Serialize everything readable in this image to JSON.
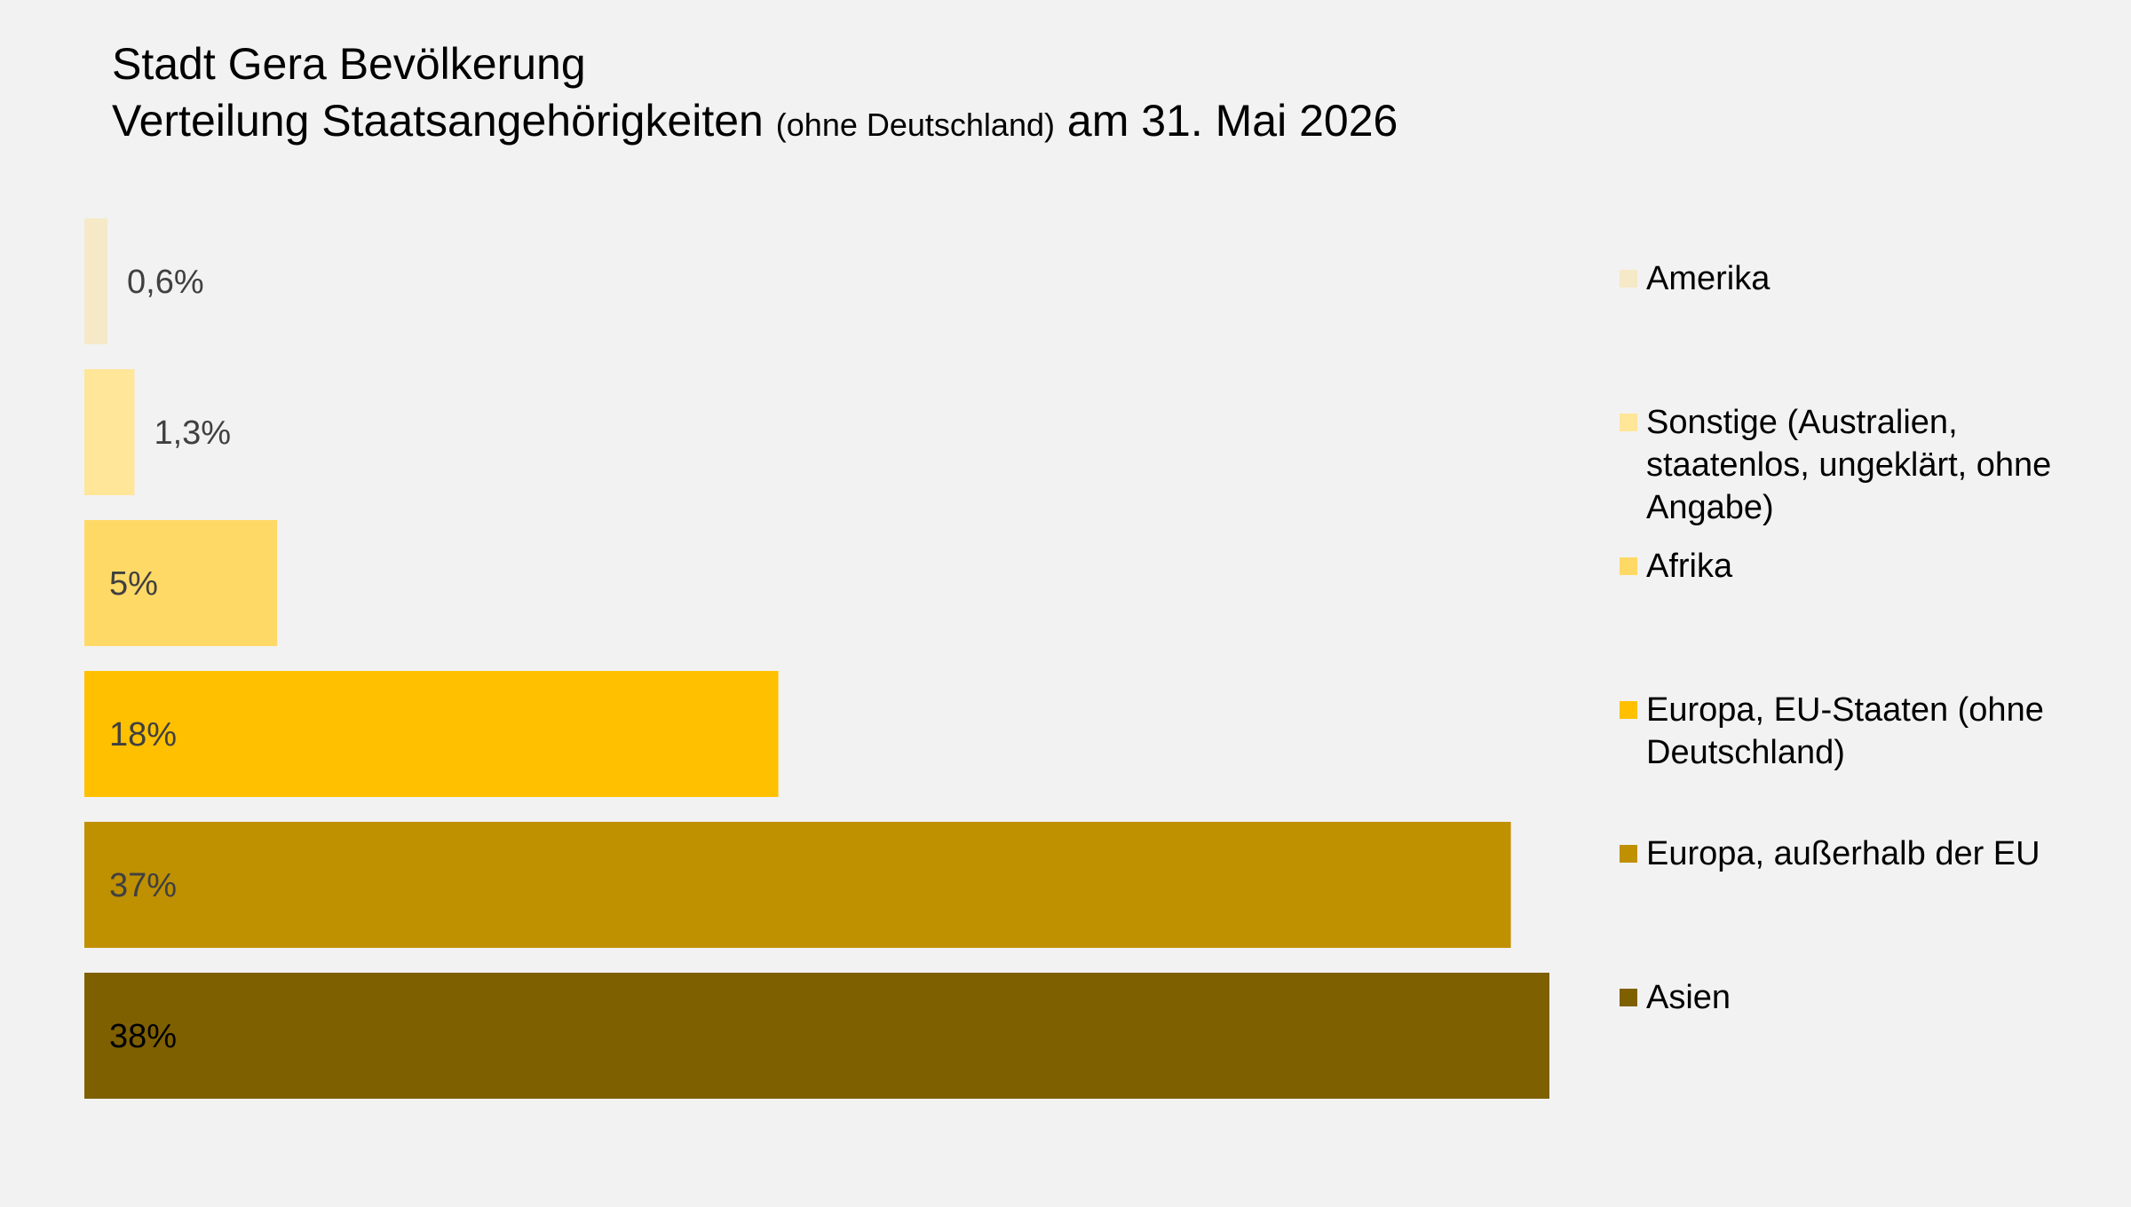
{
  "title": {
    "line1": "Stadt Gera Bevölkerung",
    "line2_main": "Verteilung Staatsangehörigkeiten",
    "line2_small": "(ohne Deutschland)",
    "line2_end": "am 31. Mai 2026"
  },
  "chart_data": {
    "type": "bar",
    "orientation": "horizontal",
    "title": "Stadt Gera Bevölkerung Verteilung Staatsangehörigkeiten (ohne Deutschland) am 31. Mai 2026",
    "categories": [
      "Amerika",
      "Sonstige (Australien, staatenlos, ungeklärt, ohne Angabe)",
      "Afrika",
      "Europa, EU-Staaten (ohne Deutschland)",
      "Europa, außerhalb der EU",
      "Asien"
    ],
    "values": [
      0.6,
      1.3,
      5,
      18,
      37,
      38
    ],
    "labels": [
      "0,6%",
      "1,3%",
      "5%",
      "18%",
      "37%",
      "38%"
    ],
    "colors": [
      "#f5e9c8",
      "#ffe699",
      "#ffd966",
      "#ffc000",
      "#bf9000",
      "#7f6000"
    ],
    "label_colors": [
      "#404040",
      "#404040",
      "#404040",
      "#404040",
      "#404040",
      "#000000"
    ],
    "legend_placement": "right",
    "grid": false
  }
}
